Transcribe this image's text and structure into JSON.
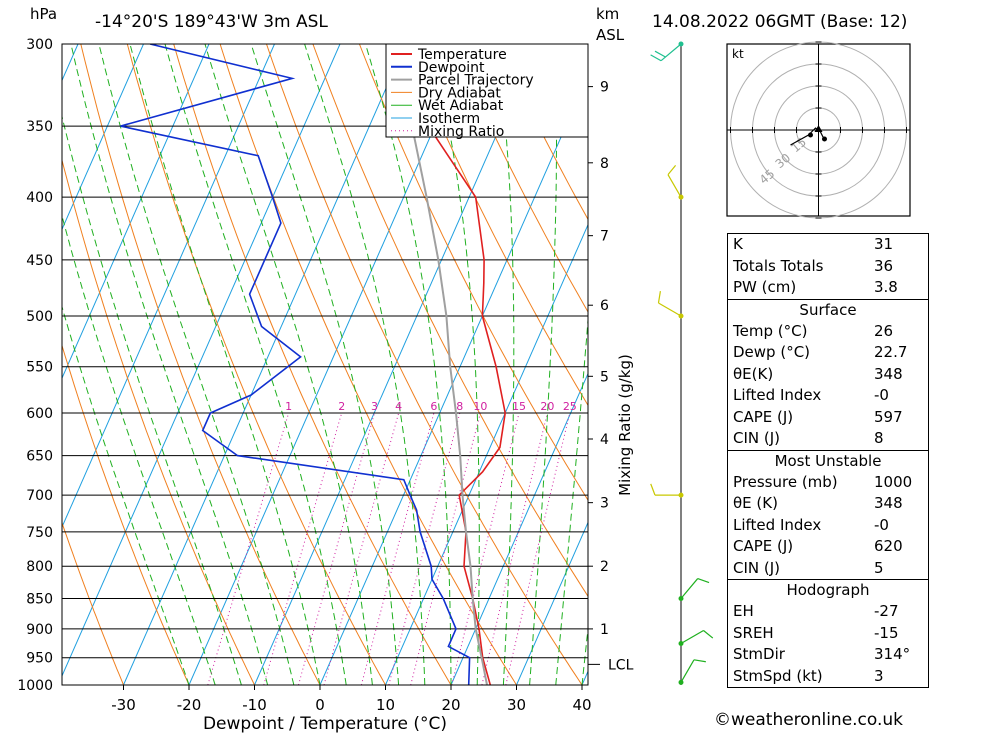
{
  "header": {
    "hpa_unit": "hPa",
    "location": "-14°20'S  189°43'W  3m  ASL",
    "km_label": "km",
    "asl_label": "ASL",
    "datetime": "14.08.2022  06GMT  (Base: 12)"
  },
  "colors": {
    "temperature": "#e02020",
    "dewpoint": "#1030d0",
    "parcel": "#a0a0a0",
    "dry_adiabat": "#f08020",
    "wet_adiabat": "#20b020",
    "isotherm": "#20a0e0",
    "mixing_ratio": "#d020a0",
    "wind_barb": "#c8c800",
    "wind_barb_low": "#20b020"
  },
  "chart_data": {
    "type": "line",
    "xlabel": "Dewpoint / Temperature (°C)",
    "ylabel": "Mixing Ratio (g/kg)",
    "x_ticks": [
      -30,
      -20,
      -10,
      0,
      10,
      20,
      30,
      40
    ],
    "pressure_levels": [
      300,
      350,
      400,
      450,
      500,
      550,
      600,
      650,
      700,
      750,
      800,
      850,
      900,
      950,
      1000
    ],
    "height_ticks": [
      {
        "km": "1",
        "p": 900
      },
      {
        "km": "2",
        "p": 800
      },
      {
        "km": "3",
        "p": 710
      },
      {
        "km": "4",
        "p": 630
      },
      {
        "km": "5",
        "p": 560
      },
      {
        "km": "6",
        "p": 490
      },
      {
        "km": "7",
        "p": 430
      },
      {
        "km": "8",
        "p": 375
      },
      {
        "km": "9",
        "p": 325
      }
    ],
    "lcl": {
      "label": "LCL",
      "p": 962
    },
    "mixing_ratio_labels": [
      "1",
      "2",
      "3",
      "4",
      "6",
      "8",
      "10",
      "15",
      "20",
      "25"
    ],
    "legend": [
      "Temperature",
      "Dewpoint",
      "Parcel Trajectory",
      "Dry Adiabat",
      "Wet Adiabat",
      "Isotherm",
      "Mixing Ratio"
    ],
    "series": [
      {
        "name": "Temperature",
        "points": [
          [
            1000,
            26
          ],
          [
            950,
            23
          ],
          [
            900,
            20.5
          ],
          [
            850,
            17.5
          ],
          [
            800,
            14
          ],
          [
            750,
            12
          ],
          [
            700,
            8.5
          ],
          [
            670,
            10.5
          ],
          [
            640,
            11.5
          ],
          [
            600,
            10
          ],
          [
            550,
            5.5
          ],
          [
            500,
            0
          ],
          [
            470,
            -2
          ],
          [
            450,
            -3.5
          ],
          [
            400,
            -9
          ],
          [
            350,
            -21
          ],
          [
            300,
            -30
          ]
        ]
      },
      {
        "name": "Dewpoint",
        "points": [
          [
            1000,
            22.7
          ],
          [
            950,
            21
          ],
          [
            930,
            17
          ],
          [
            900,
            17
          ],
          [
            850,
            13
          ],
          [
            820,
            10
          ],
          [
            800,
            9
          ],
          [
            750,
            5
          ],
          [
            720,
            3
          ],
          [
            700,
            1
          ],
          [
            680,
            -1
          ],
          [
            650,
            -28
          ],
          [
            620,
            -35
          ],
          [
            600,
            -35
          ],
          [
            580,
            -30
          ],
          [
            540,
            -25
          ],
          [
            510,
            -33
          ],
          [
            480,
            -37
          ],
          [
            420,
            -37
          ],
          [
            400,
            -40
          ],
          [
            370,
            -45
          ],
          [
            350,
            -68
          ],
          [
            320,
            -45
          ],
          [
            300,
            -69
          ]
        ]
      },
      {
        "name": "Parcel Trajectory",
        "points": [
          [
            1000,
            25.5
          ],
          [
            962,
            23.5
          ],
          [
            900,
            20
          ],
          [
            850,
            17.5
          ],
          [
            800,
            15
          ],
          [
            750,
            12
          ],
          [
            700,
            9
          ],
          [
            650,
            6
          ],
          [
            600,
            2.5
          ],
          [
            550,
            -1.5
          ],
          [
            500,
            -5.5
          ],
          [
            450,
            -10.5
          ],
          [
            400,
            -16.5
          ],
          [
            350,
            -23.5
          ],
          [
            300,
            -32
          ]
        ]
      }
    ],
    "winds": [
      {
        "p": 300,
        "dir": 230,
        "kt": 15
      },
      {
        "p": 400,
        "dir": 330,
        "kt": 10
      },
      {
        "p": 500,
        "dir": 300,
        "kt": 10
      },
      {
        "p": 700,
        "dir": 270,
        "kt": 10
      },
      {
        "p": 850,
        "dir": 40,
        "kt": 10
      },
      {
        "p": 925,
        "dir": 60,
        "kt": 10
      },
      {
        "p": 995,
        "dir": 30,
        "kt": 10
      }
    ]
  },
  "hodograph": {
    "unit": "kt",
    "ring_labels": [
      "15",
      "30",
      "45"
    ]
  },
  "indices": {
    "rows": [
      {
        "label": "K",
        "value": "31"
      },
      {
        "label": "Totals Totals",
        "value": "36"
      },
      {
        "label": "PW (cm)",
        "value": "3.8"
      }
    ]
  },
  "surface": {
    "title": "Surface",
    "rows": [
      {
        "label": "Temp (°C)",
        "value": "26"
      },
      {
        "label": "Dewp (°C)",
        "value": "22.7"
      },
      {
        "label": "θE(K)",
        "value": "348"
      },
      {
        "label": "Lifted Index",
        "value": "-0"
      },
      {
        "label": "CAPE (J)",
        "value": "597"
      },
      {
        "label": "CIN (J)",
        "value": "8"
      }
    ]
  },
  "most_unstable": {
    "title": "Most Unstable",
    "rows": [
      {
        "label": "Pressure (mb)",
        "value": "1000"
      },
      {
        "label": "θE (K)",
        "value": "348"
      },
      {
        "label": "Lifted Index",
        "value": "-0"
      },
      {
        "label": "CAPE (J)",
        "value": "620"
      },
      {
        "label": "CIN (J)",
        "value": "5"
      }
    ]
  },
  "hodograph_stats": {
    "title": "Hodograph",
    "rows": [
      {
        "label": "EH",
        "value": "-27"
      },
      {
        "label": "SREH",
        "value": "-15"
      },
      {
        "label": "StmDir",
        "value": "314°"
      },
      {
        "label": "StmSpd (kt)",
        "value": "3"
      }
    ]
  },
  "footer": {
    "copyright": "©weatheronline.co.uk"
  }
}
